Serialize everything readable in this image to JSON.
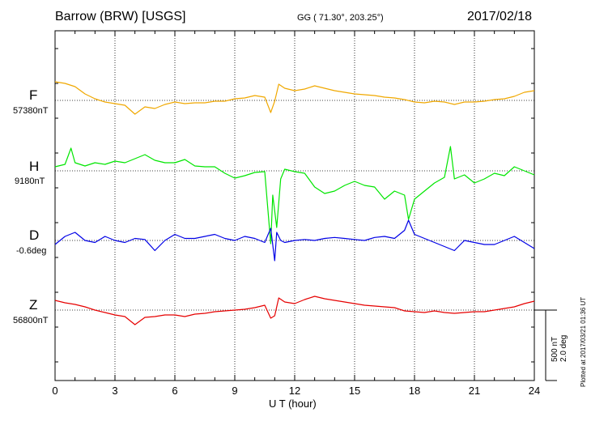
{
  "header": {
    "title": "Barrow (BRW)  [USGS]",
    "coords": "GG ( 71.30°, 203.25°)",
    "date": "2017/02/18"
  },
  "footer": {
    "plotted": "Plotted at 2017/03/21 01:36 UT",
    "scale_nt": "500 nT",
    "scale_deg": "2.0 deg"
  },
  "chart_data": {
    "type": "line",
    "xlabel": "U T (hour)",
    "xlim": [
      0,
      24
    ],
    "x_ticks": [
      "0",
      "3",
      "6",
      "9",
      "12",
      "15",
      "18",
      "21",
      "24"
    ],
    "grid": true,
    "series": [
      {
        "name": "F",
        "baseline_label": "57380nT",
        "color": "#f0a800",
        "x": [
          0,
          0.5,
          1,
          1.5,
          2,
          2.5,
          3,
          3.5,
          4,
          4.5,
          5,
          5.5,
          6,
          6.5,
          7,
          7.5,
          8,
          8.5,
          9,
          9.5,
          10,
          10.5,
          10.8,
          11,
          11.2,
          11.5,
          12,
          12.5,
          13,
          13.5,
          14,
          14.5,
          15,
          15.5,
          16,
          16.5,
          17,
          17.5,
          18,
          18.5,
          19,
          19.5,
          20,
          20.5,
          21,
          21.5,
          22,
          22.5,
          23,
          23.5,
          24
        ],
        "y": [
          230,
          210,
          170,
          80,
          20,
          -20,
          -40,
          -60,
          -170,
          -80,
          -100,
          -50,
          -20,
          -40,
          -30,
          -30,
          -10,
          -10,
          20,
          30,
          60,
          40,
          -150,
          -10,
          200,
          150,
          120,
          140,
          180,
          150,
          120,
          100,
          80,
          70,
          60,
          40,
          30,
          10,
          -20,
          -30,
          -10,
          -20,
          -50,
          -20,
          -20,
          -10,
          10,
          20,
          50,
          100,
          120
        ]
      },
      {
        "name": "H",
        "baseline_label": "9180nT",
        "color": "#00e600",
        "x": [
          0,
          0.5,
          0.8,
          1,
          1.5,
          2,
          2.5,
          3,
          3.5,
          4,
          4.5,
          5,
          5.5,
          6,
          6.5,
          7,
          7.5,
          8,
          8.5,
          9,
          9.5,
          10,
          10.5,
          10.8,
          10.9,
          11.1,
          11.3,
          11.5,
          12,
          12.5,
          13,
          13.5,
          14,
          14.5,
          15,
          15.5,
          16,
          16.5,
          17,
          17.5,
          17.7,
          18,
          18.5,
          19,
          19.5,
          19.8,
          20,
          20.5,
          21,
          21.5,
          22,
          22.5,
          23,
          23.5,
          24
        ],
        "y": [
          50,
          80,
          280,
          100,
          60,
          100,
          80,
          120,
          100,
          150,
          200,
          130,
          100,
          100,
          140,
          60,
          50,
          50,
          -30,
          -90,
          -60,
          -20,
          -10,
          -900,
          -300,
          -700,
          -100,
          20,
          -10,
          -30,
          -200,
          -280,
          -250,
          -180,
          -130,
          -180,
          -200,
          -350,
          -250,
          -300,
          -600,
          -350,
          -250,
          -150,
          -80,
          300,
          -100,
          -50,
          -150,
          -100,
          -30,
          -60,
          50,
          0,
          -50
        ]
      },
      {
        "name": "D",
        "baseline_label": "-0.6deg",
        "color": "#0000e6",
        "x": [
          0,
          0.5,
          1,
          1.5,
          2,
          2.5,
          3,
          3.5,
          4,
          4.5,
          5,
          5.5,
          6,
          6.5,
          7,
          7.5,
          8,
          8.5,
          9,
          9.5,
          10,
          10.5,
          10.8,
          11,
          11.1,
          11.3,
          11.5,
          12,
          12.5,
          13,
          13.5,
          14,
          14.5,
          15,
          15.5,
          16,
          16.5,
          17,
          17.5,
          17.7,
          18,
          18.5,
          19,
          19.5,
          20,
          20.5,
          21,
          21.5,
          22,
          22.5,
          23,
          23.5,
          24
        ],
        "y": [
          -0.2,
          0.2,
          0.4,
          0.0,
          -0.1,
          0.2,
          0.0,
          -0.1,
          0.1,
          0.05,
          -0.5,
          0.0,
          0.3,
          0.1,
          0.1,
          0.2,
          0.3,
          0.1,
          0.0,
          0.2,
          0.1,
          -0.1,
          0.6,
          -1.0,
          0.4,
          0.0,
          -0.1,
          0.0,
          0.05,
          0.0,
          0.1,
          0.15,
          0.1,
          0.05,
          0.0,
          0.15,
          0.2,
          0.1,
          0.5,
          1.0,
          0.3,
          0.1,
          -0.1,
          -0.3,
          -0.5,
          0.0,
          -0.1,
          -0.2,
          -0.2,
          0.0,
          0.2,
          -0.1,
          -0.4
        ]
      },
      {
        "name": "Z",
        "baseline_label": "56800nT",
        "color": "#e60000",
        "x": [
          0,
          0.5,
          1,
          1.5,
          2,
          2.5,
          3,
          3.5,
          4,
          4.5,
          5,
          5.5,
          6,
          6.5,
          7,
          7.5,
          8,
          8.5,
          9,
          9.5,
          10,
          10.5,
          10.8,
          11,
          11.2,
          11.5,
          12,
          12.5,
          13,
          13.5,
          14,
          14.5,
          15,
          15.5,
          16,
          16.5,
          17,
          17.5,
          18,
          18.5,
          19,
          19.5,
          20,
          20.5,
          21,
          21.5,
          22,
          22.5,
          23,
          23.5,
          24
        ],
        "y": [
          120,
          90,
          70,
          40,
          0,
          -30,
          -60,
          -80,
          -180,
          -90,
          -80,
          -60,
          -60,
          -80,
          -50,
          -40,
          -20,
          -10,
          0,
          10,
          30,
          60,
          -100,
          -70,
          150,
          100,
          80,
          130,
          170,
          140,
          120,
          100,
          80,
          60,
          50,
          40,
          30,
          -10,
          -20,
          -30,
          -10,
          -30,
          -40,
          -30,
          -20,
          -20,
          0,
          20,
          40,
          80,
          110
        ]
      }
    ]
  }
}
